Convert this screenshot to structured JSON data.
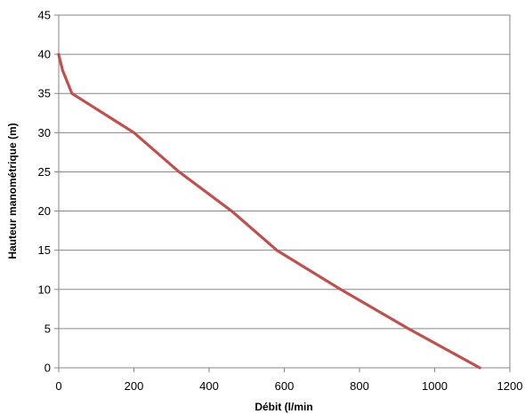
{
  "chart_data": {
    "type": "line",
    "title": "",
    "xlabel": "Débit (l/min",
    "ylabel": "Hauteur manométrique (m)",
    "xlim": [
      0,
      1200
    ],
    "ylim": [
      0,
      45
    ],
    "x_ticks": [
      0,
      200,
      400,
      600,
      800,
      1000,
      1200
    ],
    "y_ticks": [
      0,
      5,
      10,
      15,
      20,
      25,
      30,
      35,
      40,
      45
    ],
    "grid": "horizontal",
    "legend": "none",
    "colors": {
      "line": "#c0504d",
      "grid": "#868686",
      "axis": "#868686"
    },
    "series": [
      {
        "x": [
          0,
          2,
          5,
          10,
          35,
          200,
          320,
          460,
          580,
          750,
          930,
          1120
        ],
        "y": [
          40,
          39.5,
          39,
          38,
          35,
          30,
          25,
          20,
          15,
          10,
          5,
          0
        ]
      }
    ]
  }
}
